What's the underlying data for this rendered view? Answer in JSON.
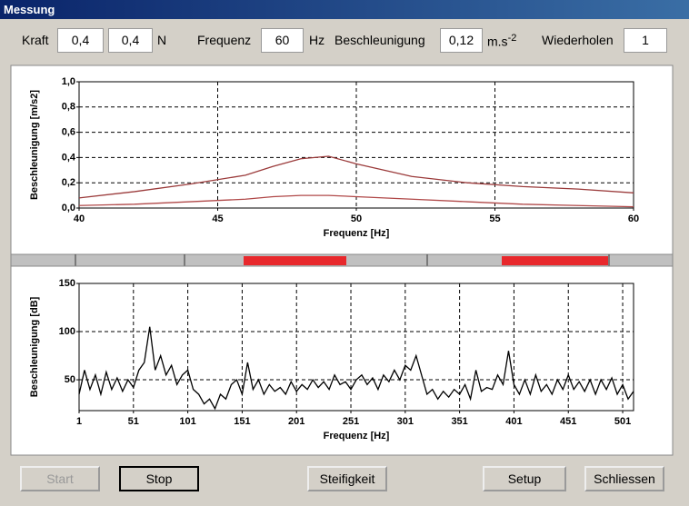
{
  "window": {
    "title": "Messung"
  },
  "toolbar": {
    "kraft": {
      "label": "Kraft",
      "values": [
        "0,4",
        "0,4"
      ],
      "unit": "N"
    },
    "frequenz": {
      "label": "Frequenz",
      "value": "60",
      "unit": "Hz"
    },
    "beschleunigung": {
      "label": "Beschleunigung",
      "value": "0,12",
      "unit": "m.s",
      "unit_exp": "-2"
    },
    "wiederholen": {
      "label": "Wiederholen",
      "value": "1"
    }
  },
  "chart_data": [
    {
      "type": "line",
      "x_label": "Frequenz [Hz]",
      "y_label": "Beschleunigung [m/s2]",
      "x": [
        40,
        42,
        44,
        46,
        47,
        48,
        49,
        50,
        52,
        54,
        56,
        58,
        60
      ],
      "series": [
        {
          "color": "#9b3b3b",
          "values": [
            0.08,
            0.13,
            0.19,
            0.26,
            0.33,
            0.39,
            0.41,
            0.35,
            0.25,
            0.2,
            0.17,
            0.15,
            0.12
          ]
        },
        {
          "color": "#b04848",
          "values": [
            0.02,
            0.03,
            0.05,
            0.07,
            0.09,
            0.1,
            0.1,
            0.09,
            0.07,
            0.05,
            0.03,
            0.02,
            0.01
          ]
        }
      ],
      "xlim": [
        40,
        60
      ],
      "xticks": [
        40,
        45,
        50,
        55,
        60
      ],
      "ylim": [
        0,
        1
      ],
      "yticks": [
        {
          "value": 0,
          "label": "0,0"
        },
        {
          "value": 0.2,
          "label": "0,2"
        },
        {
          "value": 0.4,
          "label": "0,4"
        },
        {
          "value": 0.6,
          "label": "0,6"
        },
        {
          "value": 0.8,
          "label": "0,8"
        },
        {
          "value": 1,
          "label": "1,0"
        }
      ],
      "grid": true
    },
    {
      "type": "line",
      "x_label": "Frequenz [Hz]",
      "y_label": "Beschleunigung [dB]",
      "x": [
        1,
        6,
        11,
        16,
        21,
        26,
        31,
        36,
        41,
        46,
        51,
        56,
        61,
        66,
        71,
        76,
        81,
        86,
        91,
        96,
        101,
        106,
        111,
        116,
        121,
        126,
        131,
        136,
        141,
        146,
        151,
        156,
        161,
        166,
        171,
        176,
        181,
        186,
        191,
        196,
        201,
        206,
        211,
        216,
        221,
        226,
        231,
        236,
        241,
        246,
        251,
        256,
        261,
        266,
        271,
        276,
        281,
        286,
        291,
        296,
        301,
        306,
        311,
        316,
        321,
        326,
        331,
        336,
        341,
        346,
        351,
        356,
        361,
        366,
        371,
        376,
        381,
        386,
        391,
        396,
        401,
        406,
        411,
        416,
        421,
        426,
        431,
        436,
        441,
        446,
        451,
        456,
        461,
        466,
        471,
        476,
        481,
        486,
        491,
        496,
        501,
        506,
        511
      ],
      "series": [
        {
          "color": "#000000",
          "values": [
            35,
            60,
            40,
            55,
            35,
            58,
            40,
            52,
            38,
            50,
            42,
            60,
            68,
            105,
            60,
            75,
            55,
            65,
            45,
            55,
            60,
            40,
            35,
            25,
            30,
            20,
            35,
            30,
            45,
            50,
            35,
            68,
            40,
            50,
            35,
            45,
            38,
            42,
            35,
            48,
            38,
            45,
            40,
            50,
            42,
            48,
            40,
            55,
            45,
            48,
            40,
            50,
            55,
            45,
            52,
            40,
            55,
            48,
            60,
            50,
            65,
            60,
            75,
            55,
            35,
            40,
            30,
            38,
            32,
            40,
            35,
            45,
            30,
            60,
            38,
            42,
            40,
            55,
            45,
            80,
            45,
            35,
            50,
            35,
            55,
            38,
            45,
            35,
            50,
            40,
            55,
            40,
            48,
            38,
            50,
            35,
            50,
            40,
            52,
            35,
            45,
            30,
            38
          ]
        }
      ],
      "xlim": [
        1,
        511
      ],
      "xticks": [
        1,
        51,
        101,
        151,
        201,
        251,
        301,
        351,
        401,
        451,
        501
      ],
      "ylim": [
        18,
        150
      ],
      "yticks": [
        50,
        100,
        150
      ],
      "grid": true
    }
  ],
  "buttons": [
    "Start",
    "Stop",
    "Steifigkeit",
    "Setup",
    "Schliessen"
  ]
}
